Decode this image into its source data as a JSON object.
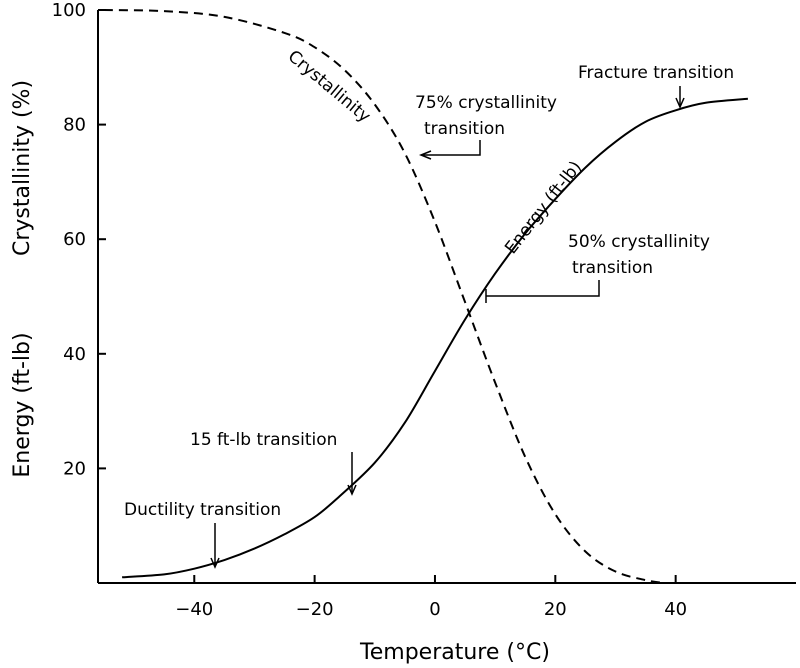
{
  "chart_data": {
    "type": "line",
    "xlabel": "Temperature (°C)",
    "ylabel_top": "Crystallinity (%)",
    "ylabel_bottom": "Energy (ft-lb)",
    "xlim": [
      -56,
      60
    ],
    "ylim": [
      0,
      100
    ],
    "x_ticks": [
      -40,
      -20,
      0,
      20,
      40
    ],
    "x_tick_labels": [
      "−40",
      "−20",
      "0",
      "20",
      "40"
    ],
    "y_ticks": [
      20,
      40,
      60,
      80,
      100
    ],
    "y_tick_labels": [
      "20",
      "40",
      "60",
      "80",
      "100"
    ],
    "grid": false,
    "series": [
      {
        "name": "Crystallinity",
        "style": "dashed",
        "x": [
          -55,
          -45,
          -35,
          -25,
          -20,
          -15,
          -10,
          -5,
          0,
          5,
          10,
          15,
          20,
          25,
          30,
          35,
          38
        ],
        "y": [
          100,
          99.8,
          98.8,
          96,
          93.5,
          89.5,
          83.5,
          75,
          63,
          49,
          35,
          22,
          12,
          5.5,
          2,
          0.5,
          0
        ]
      },
      {
        "name": "Energy (ft-lb)",
        "style": "solid",
        "x": [
          -52,
          -45,
          -40,
          -35,
          -30,
          -25,
          -20,
          -16,
          -10,
          -5,
          0,
          5,
          10,
          15,
          20,
          25,
          30,
          35,
          40,
          45,
          52
        ],
        "y": [
          1,
          1.5,
          2.5,
          4,
          6,
          8.5,
          11.5,
          15,
          21,
          28,
          37,
          46,
          54,
          61,
          67,
          72.5,
          77,
          80.5,
          82.5,
          83.8,
          84.5
        ]
      }
    ],
    "annotations": [
      {
        "text": "Fracture transition",
        "x": 40,
        "y": 82.5
      },
      {
        "text": "75% crystallinity transition",
        "x": -5,
        "y": 75
      },
      {
        "text": "50% crystallinity transition",
        "x": 6,
        "y": 49
      },
      {
        "text": "15 ft-lb transition",
        "x": -17,
        "y": 15
      },
      {
        "text": "Ductility transition",
        "x": -40,
        "y": 2.5
      }
    ]
  }
}
